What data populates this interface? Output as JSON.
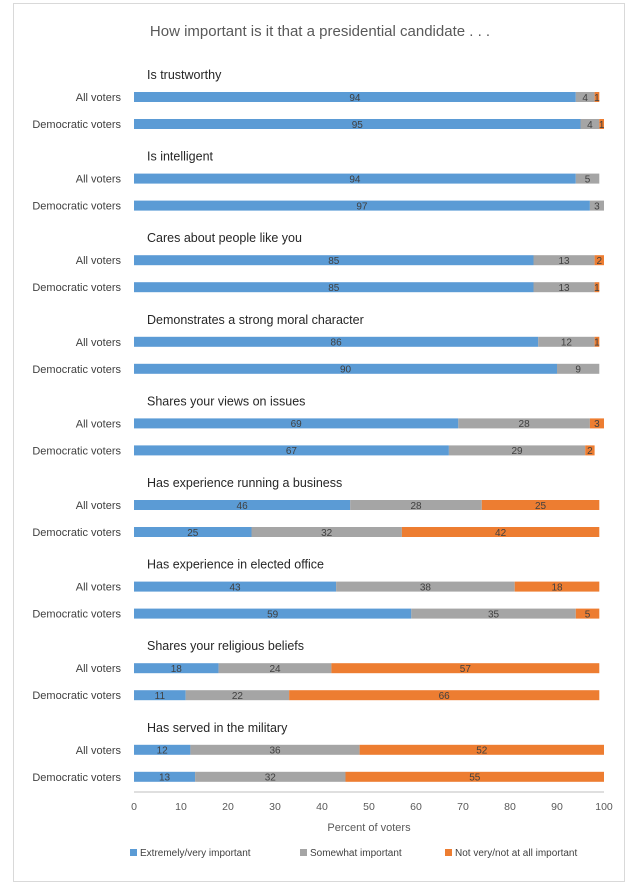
{
  "chart_data": {
    "type": "bar",
    "orientation": "horizontal",
    "stacked": true,
    "title": "How important is it that a presidential candidate . . .",
    "xlabel": "Percent of voters",
    "xlim": [
      0,
      100
    ],
    "xticks": [
      "0",
      "10",
      "20",
      "30",
      "40",
      "50",
      "60",
      "70",
      "80",
      "90",
      "100"
    ],
    "grid": false,
    "legend_position": "bottom",
    "series": [
      {
        "name": "Extremely/very important",
        "color": "#5b9bd5"
      },
      {
        "name": "Somewhat important",
        "color": "#a5a5a5"
      },
      {
        "name": "Not very/not at all important",
        "color": "#ed7d31"
      }
    ],
    "groups": [
      {
        "label": "Is trustworthy",
        "rows": [
          {
            "label": "All voters",
            "values": [
              94,
              4,
              1
            ]
          },
          {
            "label": "Democratic voters",
            "values": [
              95,
              4,
              1
            ]
          }
        ]
      },
      {
        "label": "Is intelligent",
        "rows": [
          {
            "label": "All voters",
            "values": [
              94,
              5,
              0
            ]
          },
          {
            "label": "Democratic voters",
            "values": [
              97,
              3,
              0
            ]
          }
        ]
      },
      {
        "label": "Cares about people like you",
        "rows": [
          {
            "label": "All voters",
            "values": [
              85,
              13,
              2
            ]
          },
          {
            "label": "Democratic voters",
            "values": [
              85,
              13,
              1
            ]
          }
        ]
      },
      {
        "label": "Demonstrates a strong moral character",
        "rows": [
          {
            "label": "All voters",
            "values": [
              86,
              12,
              1
            ]
          },
          {
            "label": "Democratic voters",
            "values": [
              90,
              9,
              0
            ]
          }
        ]
      },
      {
        "label": "Shares your views on issues",
        "rows": [
          {
            "label": "All voters",
            "values": [
              69,
              28,
              3
            ]
          },
          {
            "label": "Democratic voters",
            "values": [
              67,
              29,
              2
            ]
          }
        ]
      },
      {
        "label": "Has experience running a business",
        "rows": [
          {
            "label": "All voters",
            "values": [
              46,
              28,
              25
            ]
          },
          {
            "label": "Democratic voters",
            "values": [
              25,
              32,
              42
            ]
          }
        ]
      },
      {
        "label": "Has experience in elected office",
        "rows": [
          {
            "label": "All voters",
            "values": [
              43,
              38,
              18
            ]
          },
          {
            "label": "Democratic voters",
            "values": [
              59,
              35,
              5
            ]
          }
        ]
      },
      {
        "label": "Shares your religious beliefs",
        "rows": [
          {
            "label": "All voters",
            "values": [
              18,
              24,
              57
            ]
          },
          {
            "label": "Democratic voters",
            "values": [
              11,
              22,
              66
            ]
          }
        ]
      },
      {
        "label": "Has served in the military",
        "rows": [
          {
            "label": "All voters",
            "values": [
              12,
              36,
              52
            ]
          },
          {
            "label": "Democratic voters",
            "values": [
              13,
              32,
              55
            ]
          }
        ]
      }
    ]
  }
}
